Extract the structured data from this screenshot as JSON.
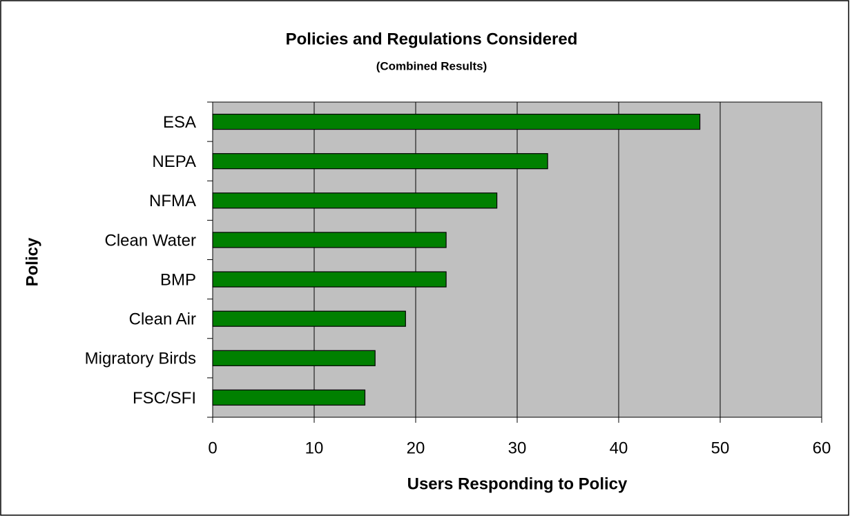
{
  "chart_data": {
    "type": "bar",
    "orientation": "horizontal",
    "title": "Policies and Regulations Considered",
    "subtitle": "(Combined Results)",
    "x_label": "Users Responding to Policy",
    "y_label": "Policy",
    "categories": [
      "ESA",
      "NEPA",
      "NFMA",
      "Clean Water",
      "BMP",
      "Clean Air",
      "Migratory Birds",
      "FSC/SFI"
    ],
    "values": [
      48,
      33,
      28,
      23,
      23,
      19,
      16,
      15
    ],
    "color": "#008000",
    "xlim": [
      0,
      60
    ],
    "xticks": [
      0,
      10,
      20,
      30,
      40,
      50,
      60
    ],
    "grid": true
  }
}
